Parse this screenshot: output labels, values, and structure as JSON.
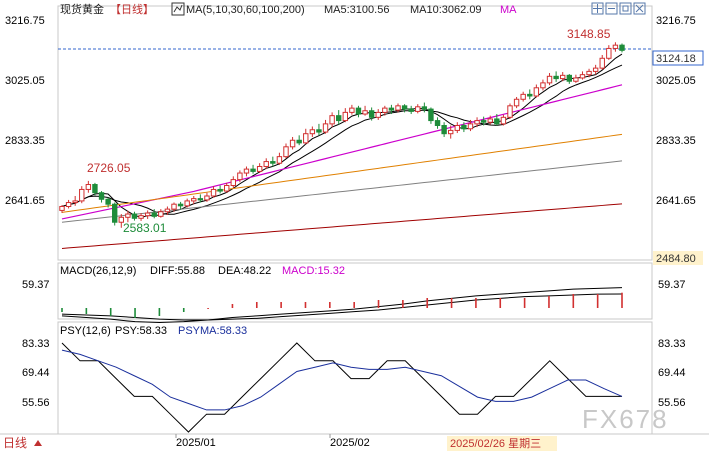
{
  "header": {
    "symbol": "现货黄金",
    "period_tag": "【日线】",
    "ma_label": "MA(5,10,30,60,100,200)",
    "ma5_label": "MA5:3100.56",
    "ma10_label": "MA10:3062.09",
    "ma_more": "MA",
    "icons": [
      "expand-icon",
      "minus-icon",
      "box-icon",
      "close-icon"
    ]
  },
  "price_axis": {
    "ticks": [
      "3216.75",
      "3025.05",
      "2833.35",
      "2641.65"
    ],
    "tick_values": [
      3216.75,
      3025.05,
      2833.35,
      2641.65
    ],
    "current": "3124.18",
    "bottom": "2484.80"
  },
  "annotations": {
    "high": "3148.85",
    "mid_high": "2726.05",
    "low": "2583.01"
  },
  "macd": {
    "title": "MACD(26,12,9)",
    "diff": "DIFF:55.88",
    "dea": "DEA:48.22",
    "macd": "MACD:15.32",
    "tick": "59.37"
  },
  "psy": {
    "title": "PSY(12,6)",
    "psy": "PSY:58.33",
    "psyma": "PSYMA:58.33",
    "ticks": [
      "83.33",
      "69.44",
      "55.56"
    ]
  },
  "xaxis": {
    "labels": [
      "2025/01",
      "2025/02"
    ],
    "current": "2025/02/26 星期三",
    "period": "日线"
  },
  "watermark": "FX678",
  "colors": {
    "up": "#d23030",
    "down": "#1e8c3a",
    "ma5": "#000000",
    "ma10": "#000000",
    "ma30": "#cc00cc",
    "ma60": "#e08000",
    "ma100": "#808080",
    "ma200": "#a00000"
  },
  "chart_data": {
    "type": "candlestick",
    "ylim": [
      2484.8,
      3216.75
    ],
    "candles": [
      [
        2636,
        2648,
        2628,
        2652
      ],
      [
        2648,
        2660,
        2642,
        2668
      ],
      [
        2660,
        2665,
        2650,
        2680
      ],
      [
        2665,
        2700,
        2658,
        2710
      ],
      [
        2700,
        2715,
        2690,
        2726.05
      ],
      [
        2715,
        2690,
        2682,
        2720
      ],
      [
        2690,
        2670,
        2660,
        2695
      ],
      [
        2670,
        2655,
        2645,
        2675
      ],
      [
        2655,
        2600,
        2590,
        2660
      ],
      [
        2600,
        2615,
        2583.01,
        2625
      ],
      [
        2615,
        2625,
        2600,
        2635
      ],
      [
        2625,
        2612,
        2605,
        2632
      ],
      [
        2612,
        2620,
        2604,
        2628
      ],
      [
        2620,
        2628,
        2610,
        2636
      ],
      [
        2628,
        2618,
        2612,
        2640
      ],
      [
        2618,
        2632,
        2614,
        2640
      ],
      [
        2632,
        2640,
        2622,
        2648
      ],
      [
        2640,
        2655,
        2632,
        2660
      ],
      [
        2655,
        2650,
        2640,
        2662
      ],
      [
        2650,
        2665,
        2645,
        2672
      ],
      [
        2665,
        2672,
        2655,
        2680
      ],
      [
        2672,
        2668,
        2660,
        2685
      ],
      [
        2668,
        2680,
        2662,
        2690
      ],
      [
        2680,
        2700,
        2675,
        2710
      ],
      [
        2700,
        2695,
        2688,
        2712
      ],
      [
        2695,
        2712,
        2690,
        2720
      ],
      [
        2712,
        2730,
        2705,
        2740
      ],
      [
        2730,
        2750,
        2722,
        2758
      ],
      [
        2750,
        2762,
        2740,
        2770
      ],
      [
        2762,
        2755,
        2748,
        2775
      ],
      [
        2755,
        2770,
        2750,
        2780
      ],
      [
        2770,
        2785,
        2762,
        2795
      ],
      [
        2785,
        2780,
        2770,
        2800
      ],
      [
        2780,
        2800,
        2775,
        2812
      ],
      [
        2800,
        2830,
        2795,
        2840
      ],
      [
        2830,
        2850,
        2822,
        2860
      ],
      [
        2850,
        2842,
        2835,
        2865
      ],
      [
        2842,
        2870,
        2838,
        2885
      ],
      [
        2870,
        2882,
        2860,
        2892
      ],
      [
        2882,
        2875,
        2865,
        2900
      ],
      [
        2875,
        2900,
        2870,
        2912
      ],
      [
        2900,
        2925,
        2890,
        2935
      ],
      [
        2925,
        2910,
        2898,
        2942
      ],
      [
        2910,
        2935,
        2905,
        2948
      ],
      [
        2935,
        2948,
        2928,
        2958
      ],
      [
        2948,
        2930,
        2920,
        2955
      ],
      [
        2930,
        2940,
        2925,
        2955
      ],
      [
        2940,
        2920,
        2910,
        2950
      ],
      [
        2920,
        2935,
        2912,
        2945
      ],
      [
        2935,
        2948,
        2925,
        2955
      ],
      [
        2948,
        2942,
        2930,
        2958
      ],
      [
        2942,
        2955,
        2935,
        2962
      ],
      [
        2955,
        2945,
        2935,
        2960
      ],
      [
        2945,
        2938,
        2930,
        2955
      ],
      [
        2938,
        2952,
        2932,
        2960
      ],
      [
        2952,
        2945,
        2935,
        2965
      ],
      [
        2945,
        2910,
        2900,
        2950
      ],
      [
        2910,
        2895,
        2885,
        2920
      ],
      [
        2895,
        2870,
        2860,
        2905
      ],
      [
        2870,
        2880,
        2855,
        2895
      ],
      [
        2880,
        2895,
        2872,
        2905
      ],
      [
        2895,
        2885,
        2875,
        2905
      ],
      [
        2885,
        2900,
        2878,
        2912
      ],
      [
        2900,
        2910,
        2890,
        2920
      ],
      [
        2910,
        2905,
        2895,
        2922
      ],
      [
        2905,
        2915,
        2898,
        2925
      ],
      [
        2915,
        2900,
        2895,
        2930
      ],
      [
        2900,
        2920,
        2895,
        2928
      ],
      [
        2920,
        2955,
        2915,
        2962
      ],
      [
        2955,
        2975,
        2948,
        2982
      ],
      [
        2975,
        2990,
        2968,
        2998
      ],
      [
        2990,
        2985,
        2975,
        3005
      ],
      [
        2985,
        3010,
        2980,
        3020
      ],
      [
        3010,
        3025,
        3002,
        3035
      ],
      [
        3025,
        3045,
        3018,
        3055
      ],
      [
        3045,
        3038,
        3028,
        3060
      ],
      [
        3038,
        3048,
        3030,
        3058
      ],
      [
        3048,
        3030,
        3022,
        3052
      ],
      [
        3030,
        3040,
        3025,
        3050
      ],
      [
        3040,
        3050,
        3035,
        3060
      ],
      [
        3050,
        3060,
        3042,
        3068
      ],
      [
        3060,
        3070,
        3050,
        3080
      ],
      [
        3070,
        3100,
        3065,
        3110
      ],
      [
        3100,
        3130,
        3095,
        3140
      ],
      [
        3130,
        3140,
        3120,
        3148.85
      ],
      [
        3140,
        3124.18,
        3118,
        3145
      ]
    ],
    "ma_lines_note": "MA5, MA10, MA30, MA60, MA100, MA200",
    "macd_diff": [
      22,
      20,
      18,
      15,
      14,
      15,
      17,
      20,
      22,
      24,
      26,
      28,
      30,
      33,
      36,
      40,
      43,
      46,
      48,
      50,
      52,
      54,
      55,
      55.88
    ],
    "macd_dea": [
      24,
      23,
      22,
      20,
      18,
      17,
      17,
      18,
      19,
      21,
      23,
      25,
      27,
      29,
      32,
      35,
      38,
      41,
      43,
      45,
      46,
      47,
      48,
      48.22
    ],
    "psy": [
      83.33,
      75,
      75,
      66.67,
      58.33,
      58.33,
      50,
      41.67,
      50,
      50,
      58.33,
      66.67,
      75,
      83.33,
      75,
      75,
      66.67,
      66.67,
      75,
      75,
      66.67,
      58.33,
      50,
      50,
      58.33,
      58.33,
      66.67,
      75,
      66.67,
      58.33,
      58.33,
      58.33
    ],
    "psyma": [
      80,
      78,
      75,
      72,
      68,
      64,
      58,
      55,
      52,
      52,
      54,
      58,
      64,
      70,
      72,
      74,
      72,
      71,
      71,
      72,
      70,
      68,
      63,
      58,
      56,
      56,
      58,
      62,
      66,
      66,
      62,
      58.33
    ]
  }
}
